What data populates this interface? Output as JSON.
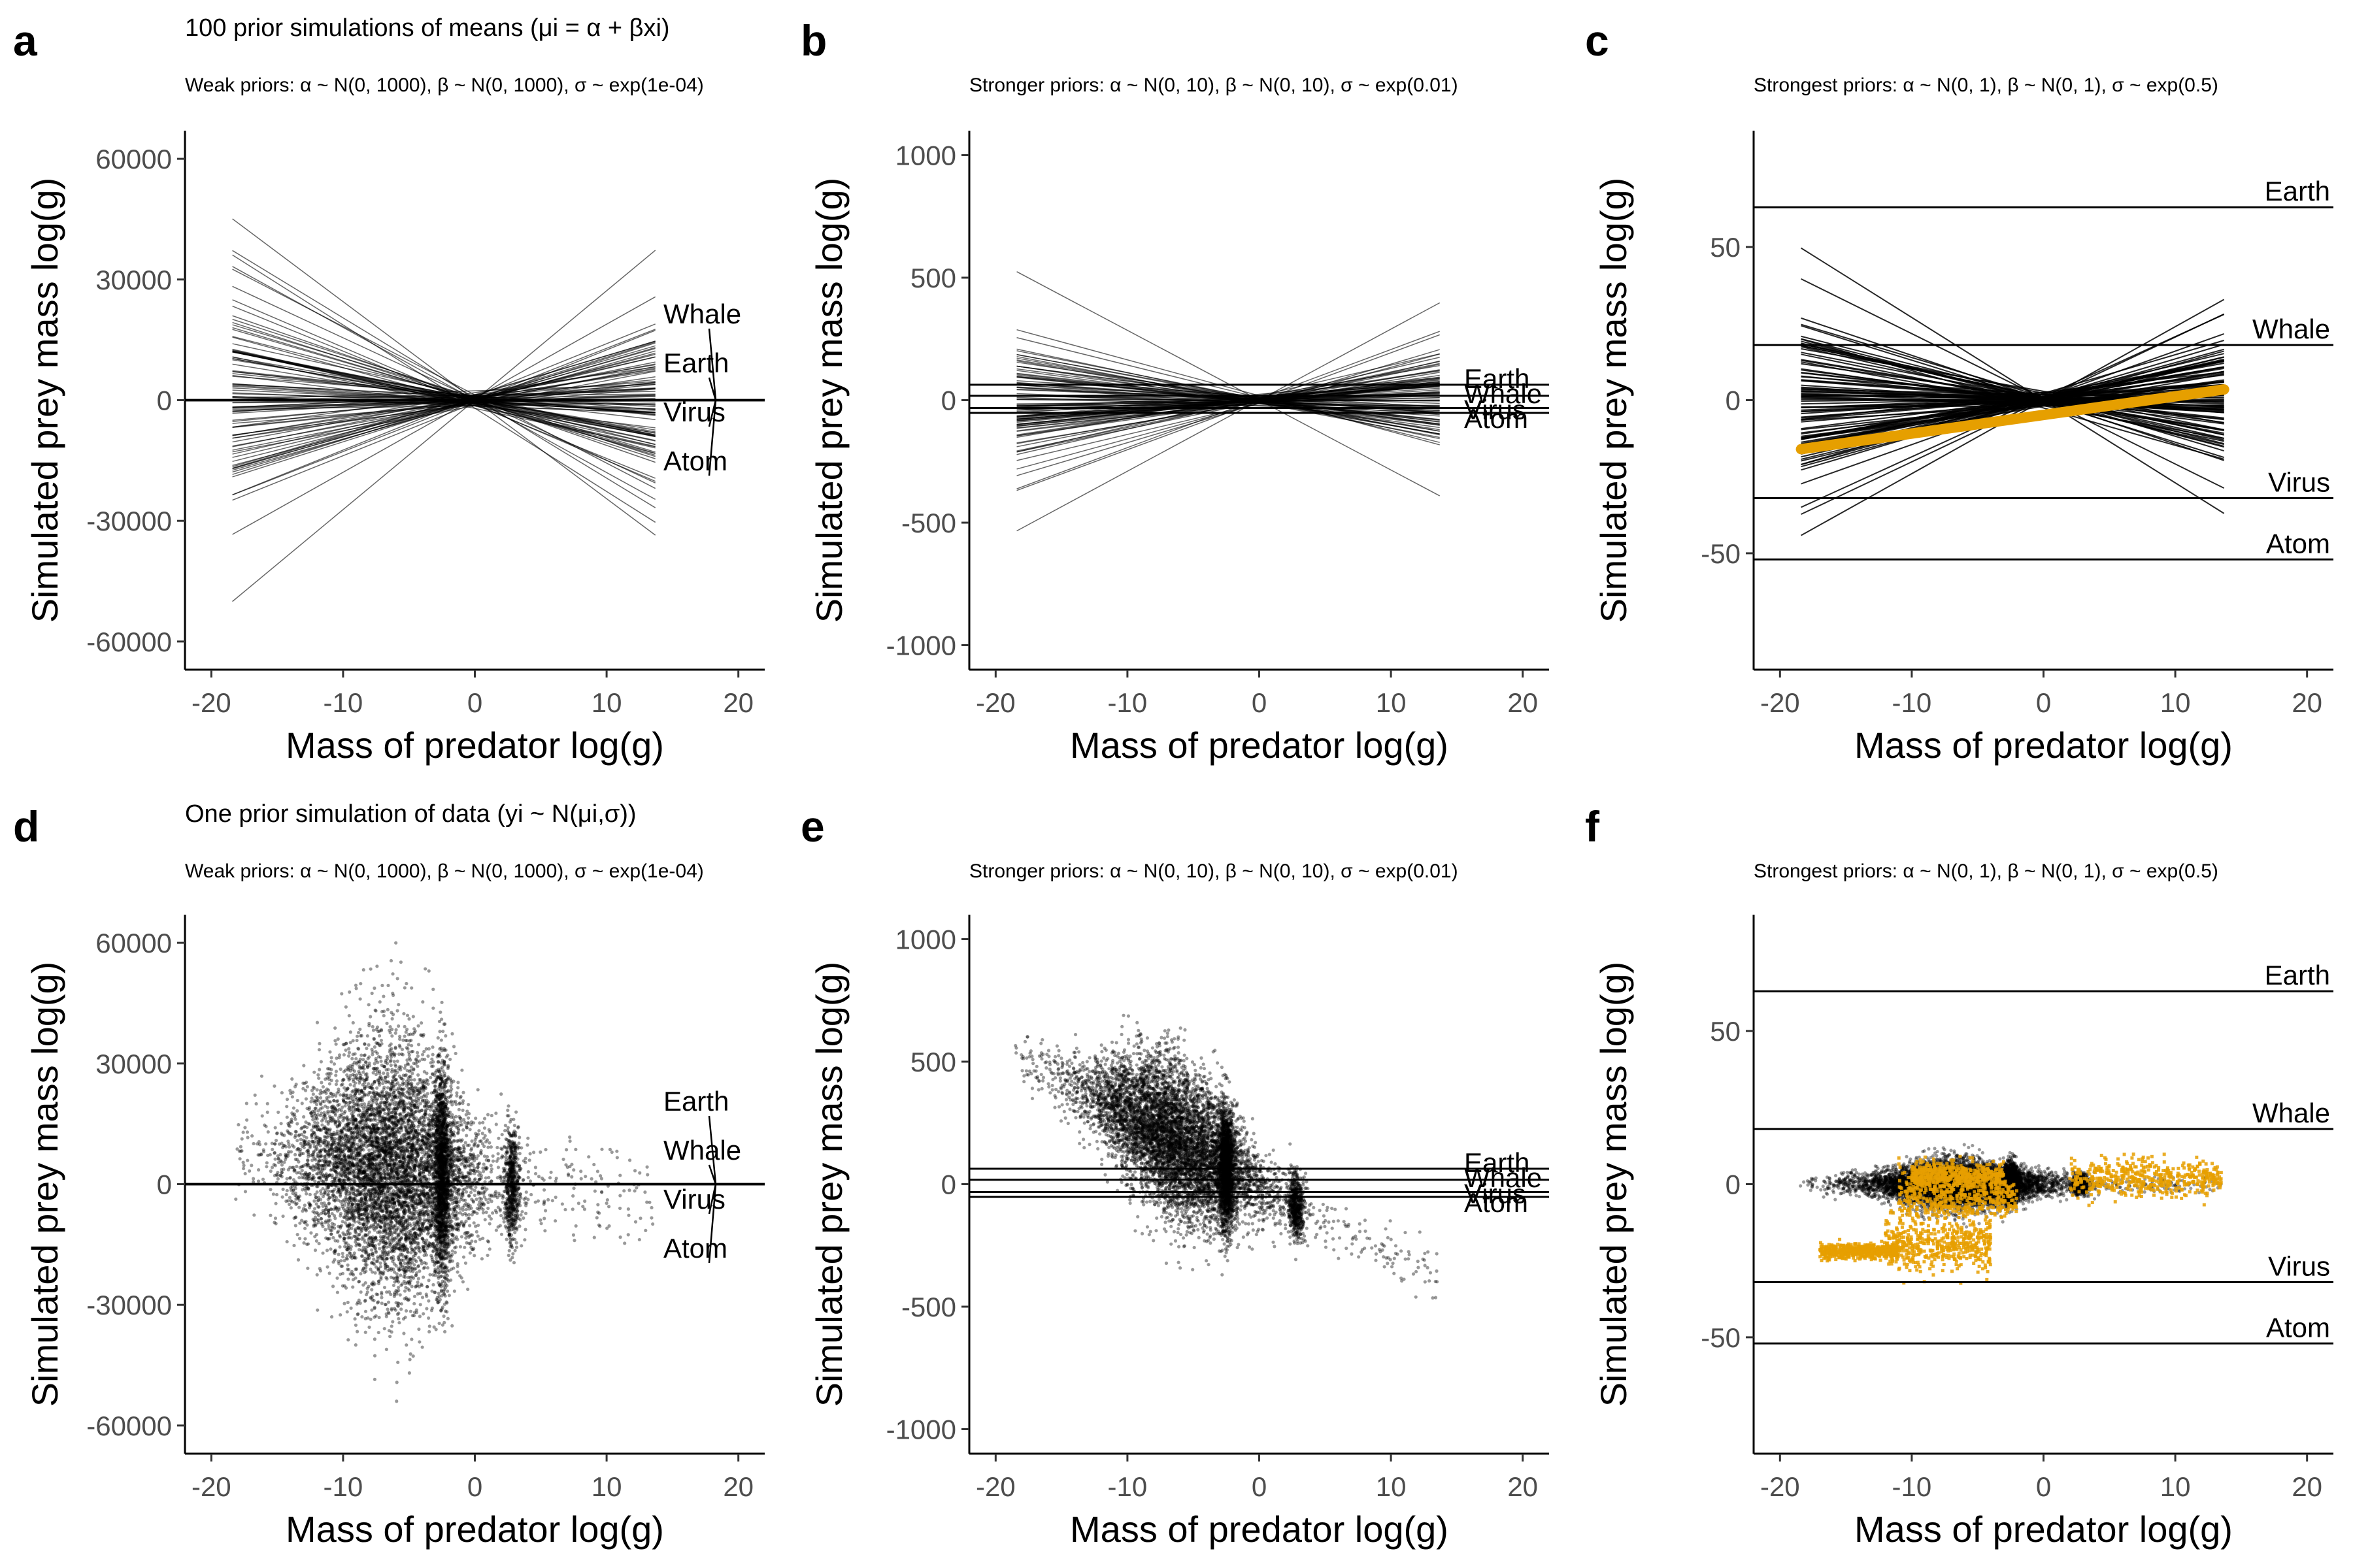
{
  "chart_data": [
    {
      "panel": "a",
      "type": "line",
      "title": "100 prior simulations of means (μi = α + βxi)",
      "subtitle": "Weak priors: α ~ N(0, 1000),  β ~ N(0, 1000),  σ ~ exp(1e-04)",
      "xlabel": "Mass of predator log(g)",
      "ylabel": "Simulated prey mass log(g)",
      "xlim": [
        -22,
        22
      ],
      "ylim": [
        -67000,
        67000
      ],
      "xticks": [
        -20,
        -10,
        0,
        10,
        20
      ],
      "yticks": [
        -60000,
        -30000,
        0,
        30000,
        60000
      ],
      "x_range": [
        -18.4,
        13.7
      ],
      "reference_lines": [
        {
          "name": "Earth",
          "y": 63
        },
        {
          "name": "Whale",
          "y": 18
        },
        {
          "name": "Virus",
          "y": -32
        },
        {
          "name": "Atom",
          "y": -52
        }
      ],
      "label_style": "repel",
      "lines": {
        "count": 100,
        "intercept_sd": 1000,
        "slope_sd": 1000,
        "slope_range": [
          -2450,
          2720
        ],
        "color": "#000000"
      }
    },
    {
      "panel": "b",
      "type": "line",
      "subtitle": "Stronger priors: α ~ N(0, 10),  β ~ N(0, 10),  σ ~ exp(0.01)",
      "xlabel": "Mass of predator log(g)",
      "ylabel": "Simulated prey mass log(g)",
      "xlim": [
        -22,
        22
      ],
      "ylim": [
        -1100,
        1100
      ],
      "xticks": [
        -20,
        -10,
        0,
        10,
        20
      ],
      "yticks": [
        -1000,
        -500,
        0,
        500,
        1000
      ],
      "x_range": [
        -18.4,
        13.7
      ],
      "reference_lines": [
        {
          "name": "Earth",
          "y": 63
        },
        {
          "name": "Whale",
          "y": 18
        },
        {
          "name": "Virus",
          "y": -32
        },
        {
          "name": "Atom",
          "y": -52
        }
      ],
      "label_style": "right",
      "lines": {
        "count": 100,
        "intercept_sd": 10,
        "slope_sd": 10,
        "slope_range": [
          -28.5,
          29
        ],
        "color": "#000000"
      }
    },
    {
      "panel": "c",
      "type": "line",
      "subtitle": "Strongest priors: α ~ N(0, 1),  β ~ N(0, 1),  σ ~ exp(0.5)",
      "xlabel": "Mass of predator log(g)",
      "ylabel": "Simulated prey mass log(g)",
      "xlim": [
        -22,
        22
      ],
      "ylim": [
        -88,
        88
      ],
      "xticks": [
        -20,
        -10,
        0,
        10,
        20
      ],
      "yticks": [
        -50,
        0,
        50
      ],
      "x_range": [
        -18.4,
        13.7
      ],
      "reference_lines": [
        {
          "name": "Earth",
          "y": 63
        },
        {
          "name": "Whale",
          "y": 18
        },
        {
          "name": "Virus",
          "y": -32
        },
        {
          "name": "Atom",
          "y": -52
        }
      ],
      "label_style": "above",
      "lines": {
        "count": 100,
        "intercept_sd": 1,
        "slope_sd": 1,
        "slope_range": [
          -2.7,
          2.4
        ],
        "color": "#000000"
      },
      "highlight_line": {
        "x": [
          -18.4,
          13.7
        ],
        "y": [
          -16,
          3.5
        ],
        "color": "#E69F00"
      }
    },
    {
      "panel": "d",
      "type": "scatter",
      "title": "One prior simulation of data (yi ~ N(μi,σ))",
      "subtitle": "Weak priors: α ~ N(0, 1000),  β ~ N(0, 1000),  σ ~ exp(1e-04)",
      "xlabel": "Mass of predator log(g)",
      "ylabel": "Simulated prey mass log(g)",
      "xlim": [
        -22,
        22
      ],
      "ylim": [
        -67000,
        67000
      ],
      "xticks": [
        -20,
        -10,
        0,
        10,
        20
      ],
      "yticks": [
        -60000,
        -30000,
        0,
        30000,
        60000
      ],
      "reference_lines": [
        {
          "name": "Earth",
          "y": 63
        },
        {
          "name": "Whale",
          "y": 18
        },
        {
          "name": "Virus",
          "y": -32
        },
        {
          "name": "Atom",
          "y": -52
        }
      ],
      "label_style": "repel",
      "points": {
        "count": 9000,
        "x_center": -6.5,
        "x_sd": 3.5,
        "trend": {
          "intercept": 1000,
          "slope": -400
        },
        "y_sd": 17000,
        "clip": [
          -58000,
          60000
        ],
        "color": "#000000"
      }
    },
    {
      "panel": "e",
      "type": "scatter",
      "subtitle": "Stronger priors: α ~ N(0, 10),  β ~ N(0, 10),  σ ~ exp(0.01)",
      "xlabel": "Mass of predator log(g)",
      "ylabel": "Simulated prey mass log(g)",
      "xlim": [
        -22,
        22
      ],
      "ylim": [
        -1100,
        1100
      ],
      "xticks": [
        -20,
        -10,
        0,
        10,
        20
      ],
      "yticks": [
        -1000,
        -500,
        0,
        500,
        1000
      ],
      "reference_lines": [
        {
          "name": "Earth",
          "y": 63
        },
        {
          "name": "Whale",
          "y": 18
        },
        {
          "name": "Virus",
          "y": -32
        },
        {
          "name": "Atom",
          "y": -52
        }
      ],
      "label_style": "right",
      "points": {
        "count": 9000,
        "x_center": -6.5,
        "x_sd": 3.5,
        "trend": {
          "intercept": -5,
          "slope": -29
        },
        "y_sd": 160,
        "clip": [
          -1000,
          1000
        ],
        "color": "#000000"
      }
    },
    {
      "panel": "f",
      "type": "scatter",
      "subtitle": "Strongest priors: α ~ N(0, 1),  β ~ N(0, 1),  σ ~ exp(0.5)",
      "xlabel": "Mass of predator log(g)",
      "ylabel": "Simulated prey mass log(g)",
      "xlim": [
        -22,
        22
      ],
      "ylim": [
        -88,
        88
      ],
      "xticks": [
        -20,
        -10,
        0,
        10,
        20
      ],
      "yticks": [
        -50,
        0,
        50
      ],
      "reference_lines": [
        {
          "name": "Earth",
          "y": 63
        },
        {
          "name": "Whale",
          "y": 18
        },
        {
          "name": "Virus",
          "y": -32
        },
        {
          "name": "Atom",
          "y": -52
        }
      ],
      "label_style": "above",
      "points": {
        "count": 9000,
        "x_center": -6.5,
        "x_sd": 3.5,
        "trend": {
          "intercept": 0,
          "slope": 0
        },
        "y_sd": 4,
        "clip": [
          -30,
          25
        ],
        "color": "#000000"
      },
      "observed_points": {
        "count": 2500,
        "color": "#E69F00",
        "clusters": [
          {
            "x": [
              -17,
              -11
            ],
            "y": -22,
            "sd": 1.2
          },
          {
            "x": [
              -12,
              -4
            ],
            "y": -20,
            "sd": 4
          },
          {
            "x": [
              -11,
              -2
            ],
            "y": -4,
            "sd": 4
          },
          {
            "x": [
              -10,
              -3
            ],
            "y": 3,
            "sd": 2
          },
          {
            "x": [
              2,
              13.5
            ],
            "y": 2,
            "sd": 3
          }
        ]
      }
    }
  ]
}
